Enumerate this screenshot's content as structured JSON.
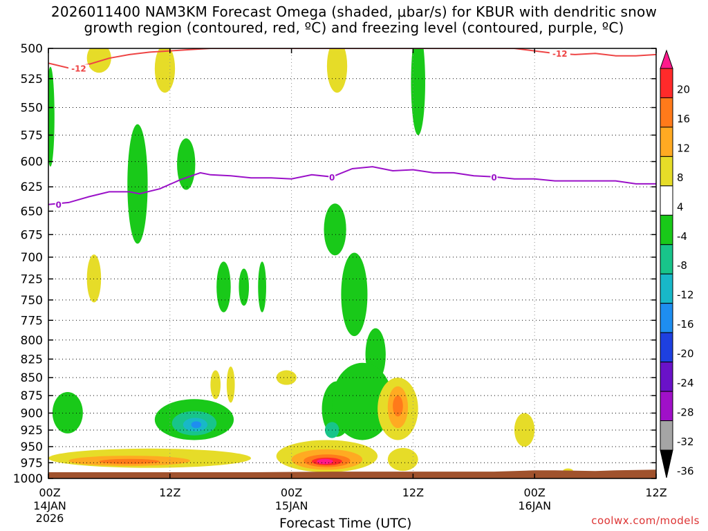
{
  "title_line1": "2026011400 NAM3KM Forecast Omega (shaded, μbar/s) for KBUR with dendritic snow",
  "title_line2": "growth region (contoured, red, ºC) and freezing level (contoured, purple, ºC)",
  "credit": "coolwx.com/models",
  "chart_data": {
    "type": "heatmap",
    "title": "2026011400 NAM3KM Forecast Omega (shaded, μbar/s) for KBUR with dendritic snow growth region (contoured, red, ºC) and freezing level (contoured, purple, ºC)",
    "xlabel": "Forecast Time (UTC)",
    "ylabel": "",
    "x_unit": "forecast hour",
    "x_range": [
      0,
      60
    ],
    "x_ticks": [
      {
        "hour": 0,
        "label": "00Z",
        "date": "14JAN",
        "year": "2026"
      },
      {
        "hour": 12,
        "label": "12Z"
      },
      {
        "hour": 24,
        "label": "00Z",
        "date": "15JAN"
      },
      {
        "hour": 36,
        "label": "12Z"
      },
      {
        "hour": 48,
        "label": "00Z",
        "date": "16JAN"
      },
      {
        "hour": 60,
        "label": "12Z"
      }
    ],
    "y_unit": "hPa",
    "y_scale": "log",
    "y_range": [
      1000,
      500
    ],
    "y_ticks": [
      500,
      525,
      550,
      575,
      600,
      625,
      650,
      675,
      700,
      725,
      750,
      775,
      800,
      825,
      850,
      875,
      900,
      925,
      950,
      975,
      1000
    ],
    "grid": true,
    "colorbar": {
      "labels": [
        "20",
        "16",
        "12",
        "8",
        "4",
        "-4",
        "-8",
        "-12",
        "-16",
        "-20",
        "-24",
        "-28",
        "-32",
        "-36"
      ],
      "colors": [
        "#ff1a8c",
        "#ff2a2a",
        "#ff7a1a",
        "#ffaa22",
        "#e6dc28",
        "#ffffff",
        "#19c919",
        "#18c48a",
        "#18b8c8",
        "#1e8ef0",
        "#1e40e0",
        "#6a12c8",
        "#a010c8",
        "#a5a5a5",
        "#000000"
      ]
    },
    "contours": {
      "dendritic_snow_growth": {
        "label": "-12",
        "color": "#ee4444",
        "points": [
          [
            0,
            512
          ],
          [
            2,
            516
          ],
          [
            4,
            513
          ],
          [
            6,
            508
          ],
          [
            8,
            505
          ],
          [
            10,
            503
          ],
          [
            12,
            502
          ],
          [
            14,
            501
          ],
          [
            16,
            500
          ],
          [
            46,
            500
          ],
          [
            48,
            502
          ],
          [
            50,
            504
          ],
          [
            52,
            505
          ],
          [
            54,
            504
          ],
          [
            56,
            506
          ],
          [
            58,
            506
          ],
          [
            60,
            505
          ]
        ]
      },
      "freezing_level": {
        "label": "0",
        "color": "#9a10c8",
        "points": [
          [
            0,
            643
          ],
          [
            2,
            641
          ],
          [
            4,
            635
          ],
          [
            6,
            630
          ],
          [
            8,
            630
          ],
          [
            9,
            632
          ],
          [
            11,
            627
          ],
          [
            13,
            618
          ],
          [
            15,
            611
          ],
          [
            16,
            613
          ],
          [
            18,
            614
          ],
          [
            20,
            616
          ],
          [
            22,
            616
          ],
          [
            24,
            617
          ],
          [
            26,
            613
          ],
          [
            28,
            615
          ],
          [
            30,
            607
          ],
          [
            32,
            605
          ],
          [
            34,
            609
          ],
          [
            36,
            608
          ],
          [
            38,
            611
          ],
          [
            40,
            611
          ],
          [
            42,
            614
          ],
          [
            44,
            615
          ],
          [
            46,
            617
          ],
          [
            48,
            617
          ],
          [
            50,
            619
          ],
          [
            52,
            619
          ],
          [
            54,
            619
          ],
          [
            56,
            619
          ],
          [
            58,
            622
          ],
          [
            60,
            622
          ]
        ]
      }
    },
    "shaded_regions": [
      {
        "level": "-4",
        "color": "#19c919",
        "center": [
          0.2,
          560
        ],
        "half_width": 0.4,
        "half_height": 45
      },
      {
        "level": "4",
        "color": "#e6dc28",
        "center": [
          5,
          508
        ],
        "half_width": 1.2,
        "half_height": 12
      },
      {
        "level": "4",
        "color": "#e6dc28",
        "center": [
          11.5,
          517
        ],
        "half_width": 1,
        "half_height": 20
      },
      {
        "level": "-4",
        "color": "#19c919",
        "center": [
          8.8,
          625
        ],
        "half_width": 1,
        "half_height": 60
      },
      {
        "level": "-4",
        "color": "#19c919",
        "center": [
          13.6,
          603
        ],
        "half_width": 0.9,
        "half_height": 25
      },
      {
        "level": "4",
        "color": "#e6dc28",
        "center": [
          4.5,
          725
        ],
        "half_width": 0.7,
        "half_height": 28
      },
      {
        "level": "4",
        "color": "#e6dc28",
        "center": [
          28.5,
          515
        ],
        "half_width": 1,
        "half_height": 22
      },
      {
        "level": "-4",
        "color": "#19c919",
        "center": [
          36.5,
          530
        ],
        "half_width": 0.7,
        "half_height": 45
      },
      {
        "level": "-4",
        "color": "#19c919",
        "center": [
          17.3,
          735
        ],
        "half_width": 0.7,
        "half_height": 30
      },
      {
        "level": "-4",
        "color": "#19c919",
        "center": [
          19.3,
          735
        ],
        "half_width": 0.5,
        "half_height": 22
      },
      {
        "level": "-4",
        "color": "#19c919",
        "center": [
          21.1,
          735
        ],
        "half_width": 0.4,
        "half_height": 30
      },
      {
        "level": "-4",
        "color": "#19c919",
        "center": [
          28.3,
          670
        ],
        "half_width": 1.1,
        "half_height": 28
      },
      {
        "level": "-4",
        "color": "#19c919",
        "center": [
          30.2,
          745
        ],
        "half_width": 1.3,
        "half_height": 50
      },
      {
        "level": "-4",
        "color": "#19c919",
        "center": [
          32.3,
          820
        ],
        "half_width": 1,
        "half_height": 35
      },
      {
        "level": "-4",
        "color": "#19c919",
        "center": [
          1.9,
          900
        ],
        "half_width": 1.5,
        "half_height": 30
      },
      {
        "level": "-4",
        "color": "#19c919",
        "center": [
          14.4,
          910
        ],
        "half_width": 3.9,
        "half_height": 30
      },
      {
        "level": "-12",
        "color": "#18c48a",
        "center": [
          14.4,
          915
        ],
        "half_width": 2.2,
        "half_height": 18
      },
      {
        "level": "-16",
        "color": "#18b8c8",
        "center": [
          14.5,
          917
        ],
        "half_width": 1.2,
        "half_height": 10
      },
      {
        "level": "-20",
        "color": "#1e8ef0",
        "center": [
          14.6,
          917
        ],
        "half_width": 0.5,
        "half_height": 5
      },
      {
        "level": "-4",
        "color": "#19c919",
        "center": [
          28.5,
          895
        ],
        "half_width": 1.5,
        "half_height": 40
      },
      {
        "level": "-4",
        "color": "#19c919",
        "center": [
          31,
          885
        ],
        "half_width": 3,
        "half_height": 55
      },
      {
        "level": "-12",
        "color": "#18c48a",
        "center": [
          28,
          925
        ],
        "half_width": 0.7,
        "half_height": 12
      },
      {
        "level": "4",
        "color": "#e6dc28",
        "center": [
          16.5,
          860
        ],
        "half_width": 0.5,
        "half_height": 20
      },
      {
        "level": "4",
        "color": "#e6dc28",
        "center": [
          18,
          860
        ],
        "half_width": 0.4,
        "half_height": 25
      },
      {
        "level": "4",
        "color": "#e6dc28",
        "center": [
          23.5,
          850
        ],
        "half_width": 1,
        "half_height": 10
      },
      {
        "level": "4",
        "color": "#e6dc28",
        "center": [
          10,
          968
        ],
        "half_width": 10,
        "half_height": 15
      },
      {
        "level": "8",
        "color": "#ffaa22",
        "center": [
          8,
          972
        ],
        "half_width": 6,
        "half_height": 8
      },
      {
        "level": "12",
        "color": "#ff7a1a",
        "center": [
          8,
          973
        ],
        "half_width": 3,
        "half_height": 4
      },
      {
        "level": "4",
        "color": "#e6dc28",
        "center": [
          27.5,
          965
        ],
        "half_width": 5,
        "half_height": 25
      },
      {
        "level": "8",
        "color": "#ffaa22",
        "center": [
          27.5,
          970
        ],
        "half_width": 3.5,
        "half_height": 16
      },
      {
        "level": "12",
        "color": "#ff7a1a",
        "center": [
          27.5,
          972
        ],
        "half_width": 2.3,
        "half_height": 10
      },
      {
        "level": "16",
        "color": "#ff2a2a",
        "center": [
          27.5,
          973
        ],
        "half_width": 1.5,
        "half_height": 6
      },
      {
        "level": "20",
        "color": "#ff1a8c",
        "center": [
          27.3,
          973
        ],
        "half_width": 0.8,
        "half_height": 4
      },
      {
        "level": "4",
        "color": "#e6dc28",
        "center": [
          34.5,
          895
        ],
        "half_width": 2,
        "half_height": 45
      },
      {
        "level": "8",
        "color": "#ffaa22",
        "center": [
          34.5,
          892
        ],
        "half_width": 1,
        "half_height": 30
      },
      {
        "level": "12",
        "color": "#ff7a1a",
        "center": [
          34.5,
          890
        ],
        "half_width": 0.5,
        "half_height": 15
      },
      {
        "level": "4",
        "color": "#e6dc28",
        "center": [
          35,
          970
        ],
        "half_width": 1.5,
        "half_height": 18
      },
      {
        "level": "4",
        "color": "#e6dc28",
        "center": [
          47,
          925
        ],
        "half_width": 1,
        "half_height": 25
      },
      {
        "level": "4",
        "color": "#e6dc28",
        "center": [
          51.3,
          988
        ],
        "half_width": 0.5,
        "half_height": 4
      }
    ],
    "terrain": {
      "color": "#a0522d",
      "points": [
        [
          0,
          990
        ],
        [
          10,
          990
        ],
        [
          20,
          990
        ],
        [
          28,
          989
        ],
        [
          30,
          989
        ],
        [
          40,
          989
        ],
        [
          44,
          989
        ],
        [
          46,
          988
        ],
        [
          48,
          987
        ],
        [
          50,
          987
        ],
        [
          54,
          988
        ],
        [
          56,
          987
        ],
        [
          60,
          986
        ]
      ]
    }
  }
}
